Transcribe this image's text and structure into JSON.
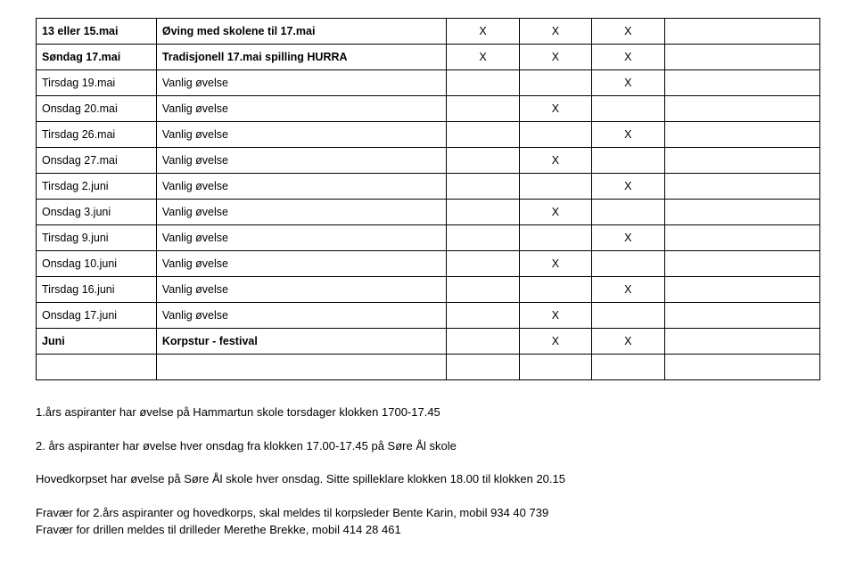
{
  "table": {
    "rows": [
      {
        "date": "13 eller 15.mai",
        "desc": "Øving med skolene til 17.mai",
        "bold": true,
        "x1": "X",
        "x2": "X",
        "x3": "X"
      },
      {
        "date": "Søndag 17.mai",
        "desc": "Tradisjonell 17.mai spilling HURRA",
        "bold": true,
        "x1": "X",
        "x2": "X",
        "x3": "X"
      },
      {
        "date": "Tirsdag 19.mai",
        "desc": "Vanlig øvelse",
        "bold": false,
        "x1": "",
        "x2": "",
        "x3": "X"
      },
      {
        "date": "Onsdag 20.mai",
        "desc": "Vanlig øvelse",
        "bold": false,
        "x1": "",
        "x2": "X",
        "x3": ""
      },
      {
        "date": "Tirsdag 26.mai",
        "desc": "Vanlig øvelse",
        "bold": false,
        "x1": "",
        "x2": "",
        "x3": "X"
      },
      {
        "date": "Onsdag 27.mai",
        "desc": "Vanlig øvelse",
        "bold": false,
        "x1": "",
        "x2": "X",
        "x3": ""
      },
      {
        "date": "Tirsdag 2.juni",
        "desc": "Vanlig øvelse",
        "bold": false,
        "x1": "",
        "x2": "",
        "x3": "X"
      },
      {
        "date": "Onsdag 3.juni",
        "desc": "Vanlig øvelse",
        "bold": false,
        "x1": "",
        "x2": "X",
        "x3": ""
      },
      {
        "date": "Tirsdag 9.juni",
        "desc": "Vanlig øvelse",
        "bold": false,
        "x1": "",
        "x2": "",
        "x3": "X"
      },
      {
        "date": "Onsdag 10.juni",
        "desc": "Vanlig øvelse",
        "bold": false,
        "x1": "",
        "x2": "X",
        "x3": ""
      },
      {
        "date": "Tirsdag 16.juni",
        "desc": "Vanlig øvelse",
        "bold": false,
        "x1": "",
        "x2": "",
        "x3": "X"
      },
      {
        "date": "Onsdag 17.juni",
        "desc": "Vanlig øvelse",
        "bold": false,
        "x1": "",
        "x2": "X",
        "x3": ""
      },
      {
        "date": "Juni",
        "desc": "Korpstur - festival",
        "bold": true,
        "x1": "",
        "x2": "X",
        "x3": "X"
      },
      {
        "date": "",
        "desc": "",
        "bold": false,
        "x1": "",
        "x2": "",
        "x3": ""
      }
    ]
  },
  "paragraphs": {
    "p1": "1.års aspiranter har øvelse på Hammartun skole torsdager klokken 1700-17.45",
    "p2": "2. års aspiranter har øvelse hver onsdag fra klokken 17.00-17.45 på Søre Ål skole",
    "p3": "Hovedkorpset har øvelse på Søre Ål skole hver onsdag. Sitte spilleklare klokken 18.00 til klokken 20.15",
    "p4a": "Fravær for 2.års aspiranter og hovedkorps, skal meldes til korpsleder Bente Karin, mobil 934 40 739",
    "p4b": "Fravær for drillen meldes til drilleder Merethe Brekke, mobil 414 28 461"
  }
}
